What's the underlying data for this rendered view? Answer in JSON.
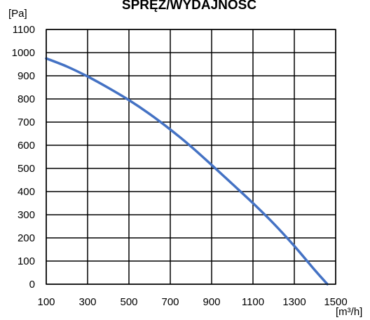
{
  "chart_data": {
    "type": "line",
    "title": "SPRĘŻ/WYDAJNOŚĆ",
    "ylabel": "[Pa]",
    "xlabel": "[m³/h]",
    "xlim": [
      100,
      1500
    ],
    "ylim": [
      0,
      1100
    ],
    "x_ticks": [
      100,
      300,
      500,
      700,
      900,
      1100,
      1300,
      1500
    ],
    "y_ticks": [
      0,
      100,
      200,
      300,
      400,
      500,
      600,
      700,
      800,
      900,
      1000,
      1100
    ],
    "grid": true,
    "series": [
      {
        "color": "#4472C4",
        "x": [
          100,
          200,
          300,
          400,
          500,
          600,
          700,
          800,
          900,
          1000,
          1100,
          1200,
          1300,
          1400,
          1460
        ],
        "y": [
          975,
          940,
          897,
          848,
          795,
          735,
          668,
          595,
          515,
          433,
          350,
          262,
          165,
          60,
          0
        ]
      }
    ]
  }
}
